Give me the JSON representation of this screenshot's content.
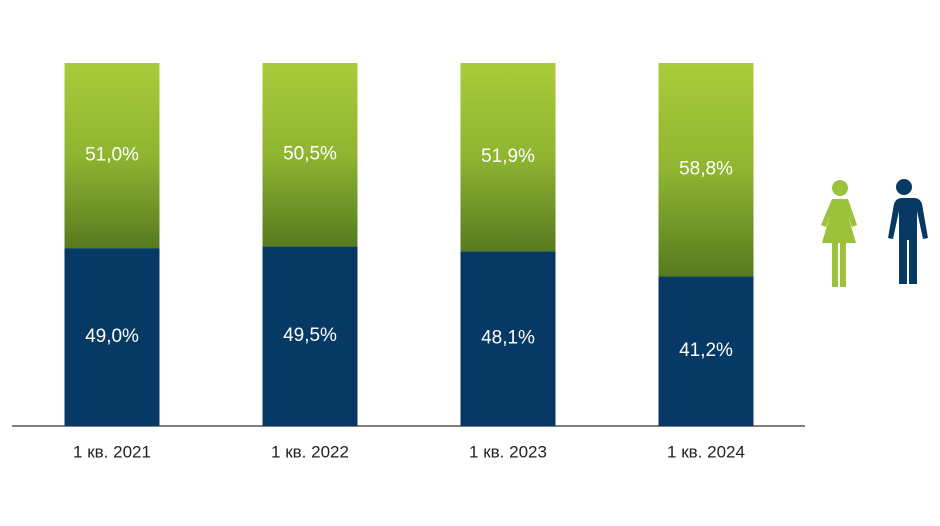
{
  "chart_data": {
    "type": "stacked-bar",
    "categories": [
      "1 кв. 2021",
      "1 кв. 2022",
      "1 кв. 2023",
      "1 кв. 2024"
    ],
    "series": [
      {
        "color": "#063a64",
        "values": [
          49.0,
          49.5,
          48.1,
          41.2
        ],
        "value_labels": [
          "49,0%",
          "49,5%",
          "48,1%",
          "41,2%"
        ]
      },
      {
        "color": "#8fb531",
        "values": [
          51.0,
          50.5,
          51.9,
          58.8
        ],
        "value_labels": [
          "51,0%",
          "50,5%",
          "51,9%",
          "58,8%"
        ]
      }
    ],
    "ylim": [
      0,
      100
    ]
  }
}
